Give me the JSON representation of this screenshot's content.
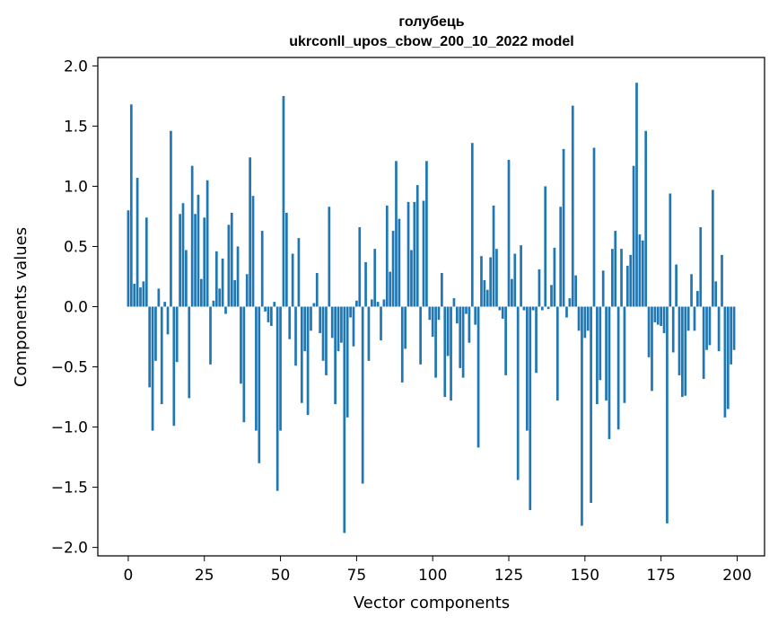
{
  "chart_data": {
    "type": "bar",
    "title_line1": "голубець",
    "title_line2": "ukrconll_upos_cbow_200_10_2022 model",
    "xlabel": "Vector components",
    "ylabel": "Components values",
    "xlim": [
      -10,
      209
    ],
    "ylim": [
      -2.07,
      2.07
    ],
    "xticks": [
      0,
      25,
      50,
      75,
      100,
      125,
      150,
      175,
      200
    ],
    "yticks": [
      2.0,
      1.5,
      1.0,
      0.5,
      0.0,
      -0.5,
      -1.0,
      -1.5,
      -2.0
    ],
    "ytick_labels": [
      "2.0",
      "1.5",
      "1.0",
      "0.5",
      "0.0",
      "−0.5",
      "−1.0",
      "−1.5",
      "−2.0"
    ],
    "bar_color": "#1f77b4",
    "values": [
      0.8,
      1.68,
      0.19,
      1.07,
      0.16,
      0.21,
      0.74,
      -0.67,
      -1.03,
      -0.45,
      0.15,
      -0.81,
      0.04,
      -0.23,
      1.46,
      -0.99,
      -0.46,
      0.77,
      0.86,
      0.47,
      -0.76,
      1.17,
      0.77,
      0.93,
      0.23,
      0.74,
      1.05,
      -0.48,
      0.05,
      0.46,
      0.15,
      0.4,
      -0.06,
      0.68,
      0.78,
      0.22,
      0.5,
      -0.64,
      -0.96,
      0.27,
      1.24,
      0.92,
      -1.03,
      -1.3,
      0.63,
      -0.04,
      -0.13,
      -0.16,
      0.04,
      -1.53,
      -1.03,
      1.75,
      0.78,
      -0.27,
      0.44,
      -0.49,
      0.57,
      -0.8,
      -0.37,
      -0.9,
      -0.2,
      0.03,
      0.28,
      -0.22,
      -0.45,
      -0.57,
      0.83,
      -0.26,
      -0.81,
      -0.37,
      -0.3,
      -1.88,
      -0.92,
      -0.09,
      -0.33,
      0.05,
      0.66,
      -1.47,
      0.37,
      -0.45,
      0.06,
      0.48,
      0.04,
      -0.28,
      0.06,
      0.84,
      0.29,
      0.63,
      1.21,
      0.73,
      -0.63,
      -0.35,
      0.87,
      0.47,
      0.87,
      1.01,
      -0.48,
      0.88,
      1.21,
      -0.11,
      -0.25,
      -0.59,
      -0.11,
      0.28,
      -0.75,
      -0.41,
      -0.78,
      0.07,
      -0.14,
      -0.51,
      -0.59,
      -0.06,
      -0.3,
      1.36,
      -0.15,
      -1.17,
      0.42,
      0.22,
      0.14,
      0.41,
      0.84,
      0.48,
      -0.03,
      -0.1,
      -0.57,
      1.22,
      0.23,
      0.44,
      -1.44,
      0.51,
      -0.03,
      -1.03,
      -1.69,
      -0.03,
      -0.55,
      0.31,
      -0.03,
      1.0,
      -0.02,
      0.18,
      0.49,
      -0.78,
      0.83,
      1.31,
      -0.09,
      0.07,
      1.67,
      0.26,
      -0.2,
      -1.82,
      -0.26,
      -0.2,
      -1.63,
      1.32,
      -0.81,
      -0.61,
      0.3,
      -0.78,
      -1.1,
      0.48,
      0.63,
      -1.02,
      0.48,
      -0.8,
      0.34,
      0.43,
      1.17,
      1.86,
      0.6,
      0.55,
      1.46,
      -0.42,
      -0.7,
      -0.13,
      -0.15,
      -0.16,
      -0.22,
      -1.8,
      0.94,
      -0.38,
      0.35,
      -0.57,
      -0.75,
      -0.74,
      -0.2,
      0.27,
      -0.2,
      0.13,
      0.66,
      -0.6,
      -0.36,
      -0.32,
      0.97,
      0.21,
      -0.37,
      0.43,
      -0.92,
      -0.85,
      -0.48,
      -0.36
    ]
  }
}
